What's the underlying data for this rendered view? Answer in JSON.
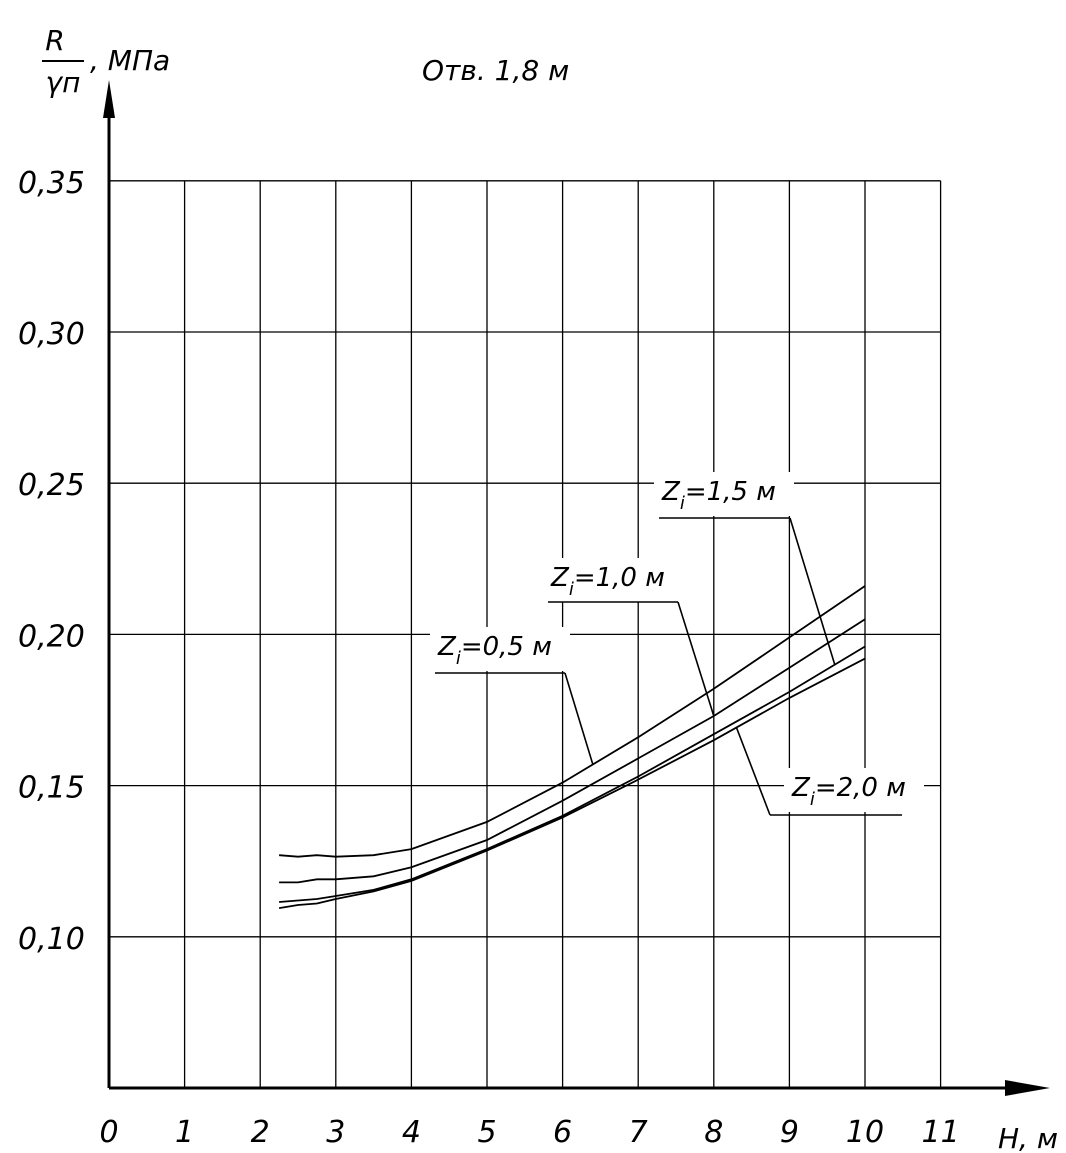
{
  "chart_data": {
    "type": "line",
    "title": "Отв. 1,8 м",
    "ylabel": {
      "numerator": "R",
      "denominator": "γп",
      "unit": ", МПа"
    },
    "xlabel": "H, м",
    "xlim": [
      0,
      11
    ],
    "ylim": [
      0.05,
      0.35
    ],
    "x_ticks": [
      "0",
      "1",
      "2",
      "3",
      "4",
      "5",
      "6",
      "7",
      "8",
      "9",
      "10",
      "11"
    ],
    "y_ticks": [
      {
        "value": 0.35,
        "label": "0,35"
      },
      {
        "value": 0.3,
        "label": "0,30"
      },
      {
        "value": 0.25,
        "label": "0,25"
      },
      {
        "value": 0.2,
        "label": "0,20"
      },
      {
        "value": 0.15,
        "label": "0,15"
      },
      {
        "value": 0.1,
        "label": "0,10"
      }
    ],
    "grid": true,
    "series": [
      {
        "name": "Zi=0,5 м",
        "label": {
          "main": "Z",
          "sub": "i",
          "rest": "=0,5 м"
        },
        "x": [
          2.25,
          2.5,
          2.75,
          3.0,
          3.5,
          4.0,
          5.0,
          6.0,
          7.0,
          8.0,
          9.0,
          10.0
        ],
        "y": [
          0.127,
          0.1265,
          0.127,
          0.1265,
          0.127,
          0.129,
          0.138,
          0.151,
          0.166,
          0.182,
          0.199,
          0.216
        ]
      },
      {
        "name": "Zi=1,0 м",
        "label": {
          "main": "Z",
          "sub": "i",
          "rest": "=1,0 м"
        },
        "x": [
          2.25,
          2.5,
          2.75,
          3.0,
          3.5,
          4.0,
          5.0,
          6.0,
          7.0,
          8.0,
          9.0,
          10.0
        ],
        "y": [
          0.118,
          0.118,
          0.119,
          0.119,
          0.12,
          0.123,
          0.132,
          0.145,
          0.159,
          0.173,
          0.189,
          0.205
        ]
      },
      {
        "name": "Zi=1,5 м",
        "label": {
          "main": "Z",
          "sub": "i",
          "rest": "=1,5 м"
        },
        "x": [
          2.25,
          2.5,
          2.75,
          3.0,
          3.5,
          4.0,
          5.0,
          6.0,
          7.0,
          8.0,
          9.0,
          10.0
        ],
        "y": [
          0.1115,
          0.112,
          0.1125,
          0.1135,
          0.1155,
          0.119,
          0.129,
          0.14,
          0.153,
          0.167,
          0.181,
          0.196
        ]
      },
      {
        "name": "Zi=2,0 м",
        "label": {
          "main": "Z",
          "sub": "i",
          "rest": "=2,0 м"
        },
        "x": [
          2.25,
          2.5,
          2.75,
          3.0,
          3.5,
          4.0,
          5.0,
          6.0,
          7.0,
          8.0,
          9.0,
          10.0
        ],
        "y": [
          0.1095,
          0.1105,
          0.111,
          0.1125,
          0.115,
          0.1185,
          0.1285,
          0.1395,
          0.152,
          0.165,
          0.179,
          0.192
        ]
      }
    ]
  }
}
